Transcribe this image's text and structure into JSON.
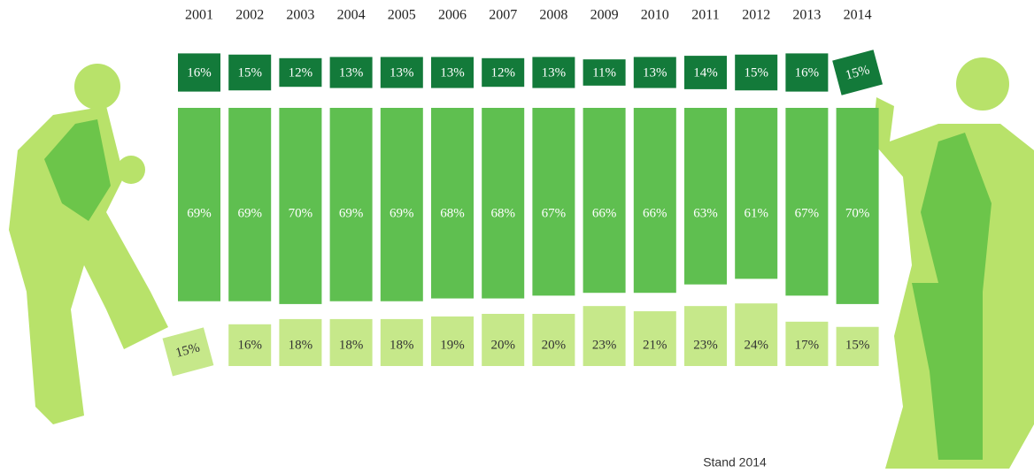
{
  "chart_data": {
    "type": "stacked-tiles",
    "categories": [
      "2001",
      "2002",
      "2003",
      "2004",
      "2005",
      "2006",
      "2007",
      "2008",
      "2009",
      "2010",
      "2011",
      "2012",
      "2013",
      "2014"
    ],
    "series": [
      {
        "color": "#137a3a",
        "values": [
          16,
          15,
          12,
          13,
          13,
          13,
          12,
          13,
          11,
          13,
          14,
          15,
          16,
          15
        ],
        "value_labels": [
          "16%",
          "15%",
          "12%",
          "13%",
          "13%",
          "13%",
          "12%",
          "13%",
          "11%",
          "13%",
          "14%",
          "15%",
          "16%",
          "15%"
        ]
      },
      {
        "color": "#5fbf50",
        "values": [
          69,
          69,
          70,
          69,
          69,
          68,
          68,
          67,
          66,
          66,
          63,
          61,
          67,
          70
        ],
        "value_labels": [
          "69%",
          "69%",
          "70%",
          "69%",
          "69%",
          "68%",
          "68%",
          "67%",
          "66%",
          "66%",
          "63%",
          "61%",
          "67%",
          "70%"
        ]
      },
      {
        "color": "#c6e88a",
        "values": [
          15,
          16,
          18,
          18,
          18,
          19,
          20,
          20,
          23,
          21,
          23,
          24,
          17,
          15
        ],
        "value_labels": [
          "15%",
          "16%",
          "18%",
          "18%",
          "18%",
          "19%",
          "20%",
          "20%",
          "23%",
          "21%",
          "23%",
          "24%",
          "17%",
          "15%"
        ]
      }
    ],
    "note": "Stand 2014"
  }
}
